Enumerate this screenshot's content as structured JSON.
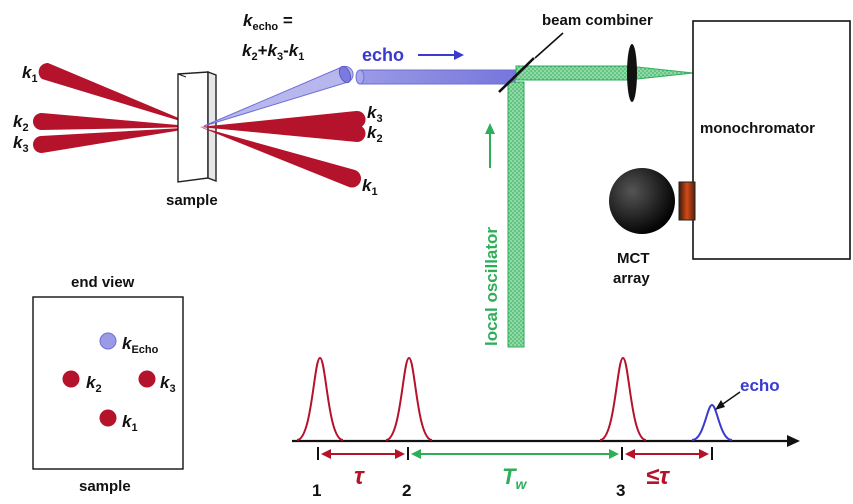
{
  "labels": {
    "k_echo_formula_line1_k": "k",
    "k_echo_formula_line1_sub": "echo",
    "k_echo_formula_line1_eq": " =",
    "k_echo_formula_line2": "k2+k3-k1",
    "echo_top": "echo",
    "beam_combiner": "beam combiner",
    "monochromator": "monochromator",
    "local_oscillator": "local oscillator",
    "sample_top": "sample",
    "mct_line1": "MCT",
    "mct_line2": "array",
    "end_view": "end view",
    "sample_bottom": "sample",
    "echo_bottom": "echo"
  },
  "beam_labels": {
    "k1_left": {
      "k": "k",
      "sub": "1"
    },
    "k2_left": {
      "k": "k",
      "sub": "2"
    },
    "k3_left": {
      "k": "k",
      "sub": "3"
    },
    "k3_right": {
      "k": "k",
      "sub": "3"
    },
    "k2_right": {
      "k": "k",
      "sub": "2"
    },
    "k1_right": {
      "k": "k",
      "sub": "1"
    }
  },
  "end_view_labels": {
    "kecho": {
      "k": "k",
      "sub": "Echo"
    },
    "k2": {
      "k": "k",
      "sub": "2"
    },
    "k3": {
      "k": "k",
      "sub": "3"
    },
    "k1": {
      "k": "k",
      "sub": "1"
    }
  },
  "timeline": {
    "tick_numbers": [
      "1",
      "2",
      "3"
    ],
    "tau": "τ",
    "tw_T": "T",
    "tw_sub": "w",
    "leq_tau": "≤τ"
  },
  "colors": {
    "beam_red": "#b5122b",
    "echo_blue": "#6f6fd6",
    "echo_blue_fill": "#9a9ae6",
    "lo_green": "#2fae5a",
    "lo_green_fill": "#8fd9a6",
    "axis": "#111111"
  }
}
